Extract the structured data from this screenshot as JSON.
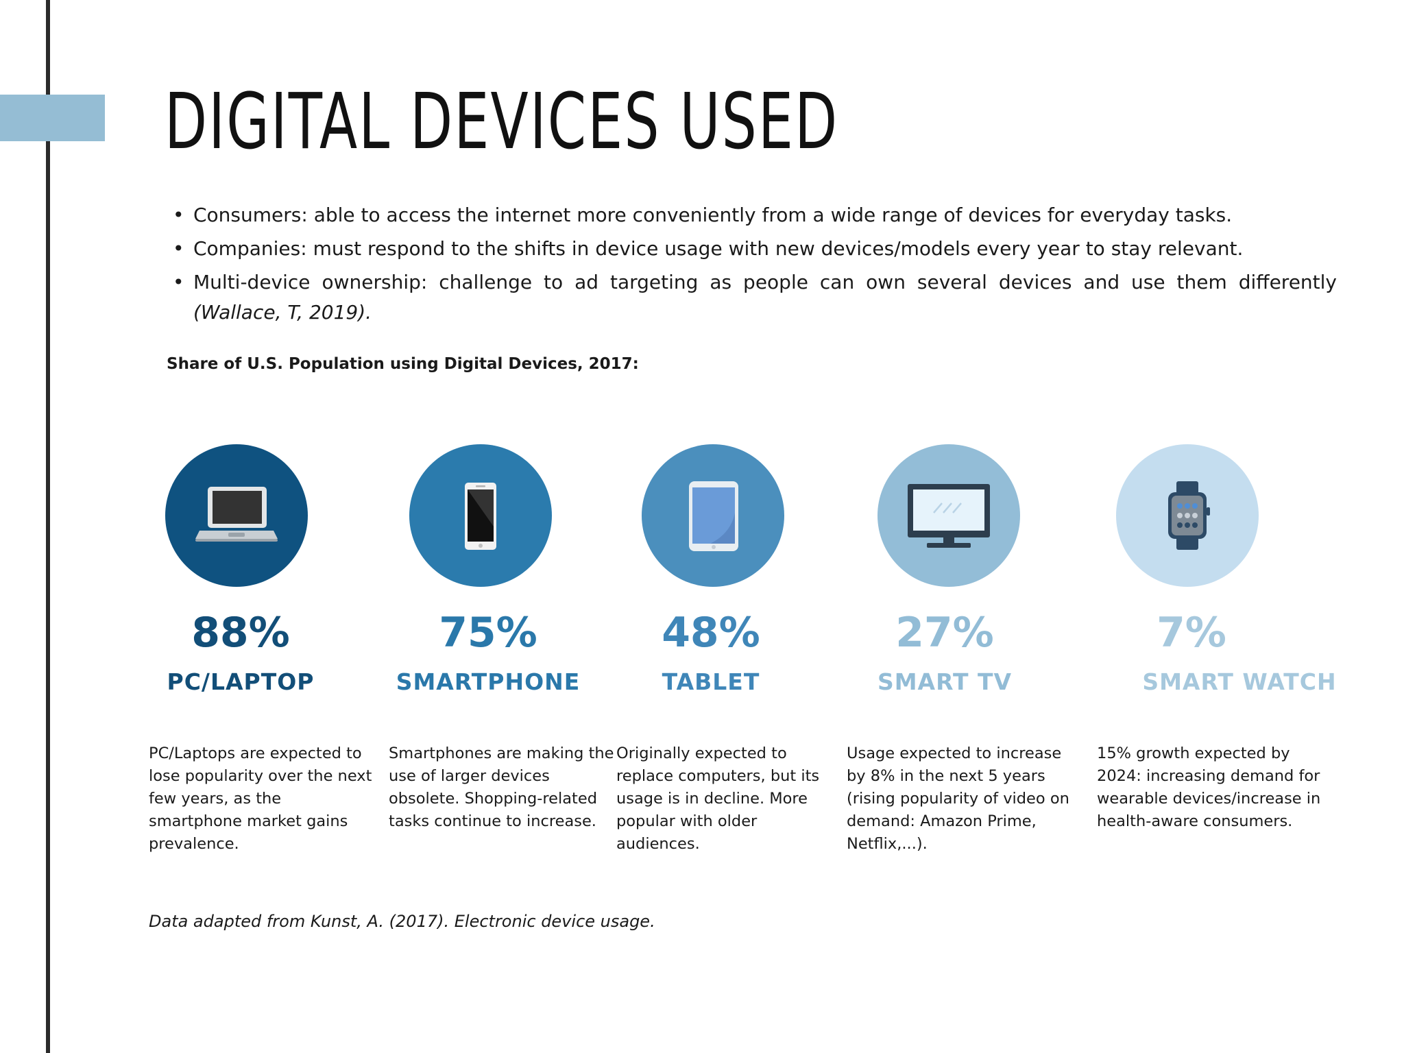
{
  "page": {
    "title": "DIGITAL DEVICES USED",
    "bullets": [
      {
        "text": "Consumers: able to access the internet more conveniently from a wide range of devices for everyday tasks.",
        "citation": ""
      },
      {
        "text": "Companies: must respond to the shifts in device usage with new devices/models every year to stay relevant.",
        "citation": ""
      },
      {
        "text": "Multi-device ownership: challenge to ad targeting as people can own several devices and use them differently ",
        "citation": "(Wallace, T, 2019)."
      }
    ],
    "share_title": "Share of U.S. Population using Digital Devices, 2017:",
    "footer": "Data adapted from Kunst, A. (2017). Electronic device usage.",
    "colors": {
      "accent_bar": "#95bdd4",
      "vertical_rule": "#2b2b2b"
    }
  },
  "devices": [
    {
      "icon": "laptop-icon",
      "percent": "88%",
      "name": "PC/LAPTOP",
      "circle_color": "#0f5280",
      "text_color": "#124e78",
      "description": "PC/Laptops are expected to lose popularity over the next few years, as the smartphone market gains prevalence."
    },
    {
      "icon": "smartphone-icon",
      "percent": "75%",
      "name": "SMARTPHONE",
      "circle_color": "#2b7bad",
      "text_color": "#2a78aa",
      "description": "Smartphones are making the use of larger devices obsolete. Shopping-related tasks continue to increase."
    },
    {
      "icon": "tablet-icon",
      "percent": "48%",
      "name": "TABLET",
      "circle_color": "#4b8fbd",
      "text_color": "#3f86b8",
      "description": "Originally expected to replace computers, but its  usage is in decline. More popular with older audiences."
    },
    {
      "icon": "tv-icon",
      "percent": "27%",
      "name": "SMART TV",
      "circle_color": "#93bdd7",
      "text_color": "#92bcd6",
      "description": "Usage expected to increase by 8% in the next 5 years (rising popularity of video on demand: Amazon Prime, Netflix,...)."
    },
    {
      "icon": "smartwatch-icon",
      "percent": "7%",
      "name": "SMART WATCH",
      "circle_color": "#c4ddef",
      "text_color": "#a6c8dd",
      "description": "15% growth expected by 2024: increasing demand for wearable devices/increase in health-aware consumers."
    }
  ]
}
